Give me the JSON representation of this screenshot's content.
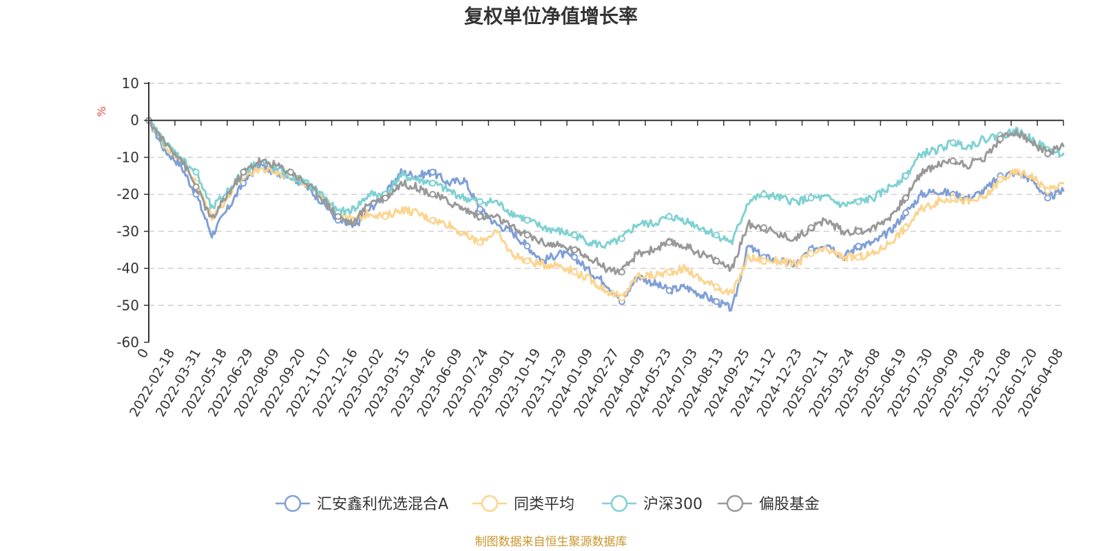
{
  "chart_data": {
    "type": "line",
    "title": "复权单位净值增长率",
    "ylabel": "%",
    "xlabel": "",
    "ylim": [
      -60,
      10
    ],
    "yticks": [
      "10",
      "0",
      "-10",
      "-20",
      "-30",
      "-40",
      "-50",
      "-60"
    ],
    "xticks": [
      "0",
      "2022-02-18",
      "2022-03-31",
      "2022-05-18",
      "2022-06-29",
      "2022-08-09",
      "2022-09-20",
      "2022-11-07",
      "2022-12-16",
      "2023-02-02",
      "2023-03-15",
      "2023-04-26",
      "2023-06-09",
      "2023-07-24",
      "2023-09-01",
      "2023-10-19",
      "2023-11-29",
      "2024-01-09",
      "2024-02-27",
      "2024-04-09",
      "2024-05-23",
      "2024-07-03",
      "2024-08-13",
      "2024-09-25",
      "2024-11-12",
      "2024-12-23",
      "2025-02-11",
      "2025-03-24",
      "2025-05-08",
      "2025-06-19",
      "2025-07-30",
      "2025-09-09",
      "2025-10-28",
      "2025-12-08",
      "2026-01-20",
      "2026-04-08"
    ],
    "grid": true,
    "legend_position": "bottom",
    "series": [
      {
        "name": "汇安鑫利优选混合A",
        "color": "#7f9fd6",
        "values": [
          0,
          -8,
          -12,
          -20,
          -31,
          -24,
          -17,
          -12,
          -14,
          -15,
          -18,
          -22,
          -27,
          -29,
          -24,
          -20,
          -14,
          -15,
          -14,
          -17,
          -16,
          -24,
          -28,
          -30,
          -34,
          -38,
          -36,
          -37,
          -41,
          -44,
          -49,
          -42,
          -44,
          -46,
          -45,
          -47,
          -49,
          -51,
          -34,
          -37,
          -38,
          -39,
          -35,
          -33,
          -37,
          -34,
          -33,
          -30,
          -25,
          -20,
          -19,
          -20,
          -21,
          -19,
          -15,
          -14,
          -16,
          -21,
          -19
        ]
      },
      {
        "name": "同类平均",
        "color": "#fcd48e",
        "values": [
          0,
          -7,
          -10,
          -17,
          -26,
          -21,
          -15,
          -13,
          -14,
          -15,
          -17,
          -21,
          -25,
          -27,
          -25,
          -26,
          -24,
          -25,
          -27,
          -28,
          -31,
          -33,
          -30,
          -36,
          -38,
          -39,
          -39,
          -41,
          -43,
          -46,
          -48,
          -42,
          -42,
          -41,
          -40,
          -43,
          -45,
          -47,
          -37,
          -38,
          -38,
          -39,
          -36,
          -35,
          -37,
          -37,
          -36,
          -33,
          -29,
          -24,
          -22,
          -21,
          -22,
          -21,
          -16,
          -14,
          -15,
          -19,
          -17
        ]
      },
      {
        "name": "沪深300",
        "color": "#7fd1d3",
        "values": [
          0,
          -6,
          -10,
          -14,
          -24,
          -19,
          -14,
          -11,
          -13,
          -15,
          -17,
          -20,
          -25,
          -24,
          -20,
          -20,
          -15,
          -16,
          -17,
          -19,
          -21,
          -22,
          -22,
          -25,
          -27,
          -29,
          -30,
          -31,
          -33,
          -34,
          -32,
          -28,
          -28,
          -26,
          -27,
          -29,
          -31,
          -33,
          -22,
          -20,
          -21,
          -22,
          -21,
          -21,
          -23,
          -22,
          -21,
          -18,
          -15,
          -9,
          -8,
          -6,
          -7,
          -5,
          -4,
          -3,
          -5,
          -8,
          -9
        ]
      },
      {
        "name": "偏股基金",
        "color": "#999999",
        "values": [
          0,
          -6,
          -10,
          -18,
          -27,
          -20,
          -14,
          -11,
          -12,
          -14,
          -17,
          -21,
          -26,
          -28,
          -22,
          -21,
          -17,
          -18,
          -20,
          -22,
          -24,
          -26,
          -26,
          -29,
          -31,
          -33,
          -34,
          -35,
          -37,
          -40,
          -41,
          -36,
          -35,
          -33,
          -34,
          -36,
          -38,
          -40,
          -28,
          -29,
          -31,
          -32,
          -29,
          -27,
          -30,
          -30,
          -29,
          -26,
          -21,
          -14,
          -12,
          -11,
          -12,
          -10,
          -5,
          -3,
          -6,
          -9,
          -7
        ]
      }
    ]
  },
  "footer": {
    "source": "制图数据来自恒生聚源数据库"
  }
}
